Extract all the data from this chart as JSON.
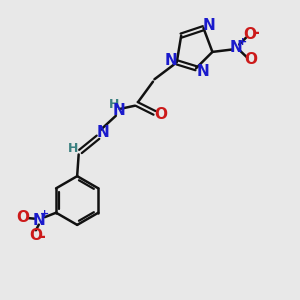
{
  "bg_color": "#e8e8e8",
  "bond_color": "#111111",
  "N_color": "#1a1acc",
  "O_color": "#cc1a1a",
  "H_color": "#3a8080",
  "lw": 1.8,
  "lw2": 1.6,
  "fs": 11,
  "fs_s": 9,
  "xlim": [
    0,
    10
  ],
  "ylim": [
    0,
    10
  ]
}
